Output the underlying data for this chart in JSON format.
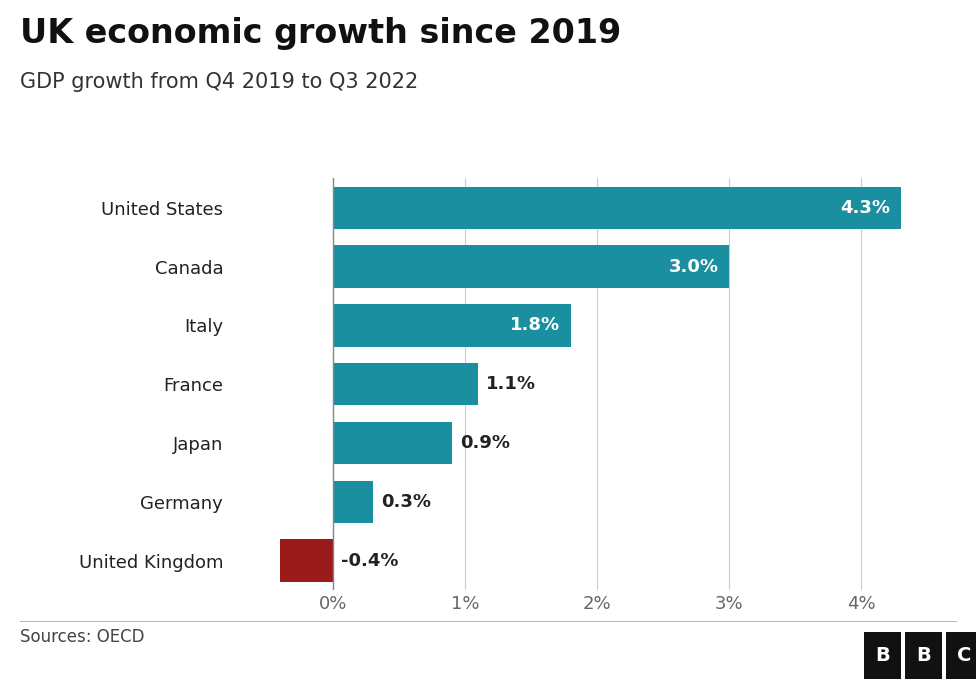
{
  "title": "UK economic growth since 2019",
  "subtitle": "GDP growth from Q4 2019 to Q3 2022",
  "categories": [
    "United States",
    "Canada",
    "Italy",
    "France",
    "Japan",
    "Germany",
    "United Kingdom"
  ],
  "values": [
    4.3,
    3.0,
    1.8,
    1.1,
    0.9,
    0.3,
    -0.4
  ],
  "labels": [
    "4.3%",
    "3.0%",
    "1.8%",
    "1.1%",
    "0.9%",
    "0.3%",
    "-0.4%"
  ],
  "bar_colors": [
    "#1a8fa0",
    "#1a8fa0",
    "#1a8fa0",
    "#1a8fa0",
    "#1a8fa0",
    "#1a8fa0",
    "#9b1b1b"
  ],
  "background_color": "#ffffff",
  "source_text": "Sources: OECD",
  "xlim": [
    -0.75,
    4.65
  ],
  "xticks": [
    0,
    1,
    2,
    3,
    4
  ],
  "xticklabels": [
    "0%",
    "1%",
    "2%",
    "3%",
    "4%"
  ],
  "title_fontsize": 24,
  "subtitle_fontsize": 15,
  "label_fontsize": 13,
  "tick_fontsize": 13,
  "source_fontsize": 12,
  "bar_height": 0.72,
  "white_label_threshold": 1.8
}
